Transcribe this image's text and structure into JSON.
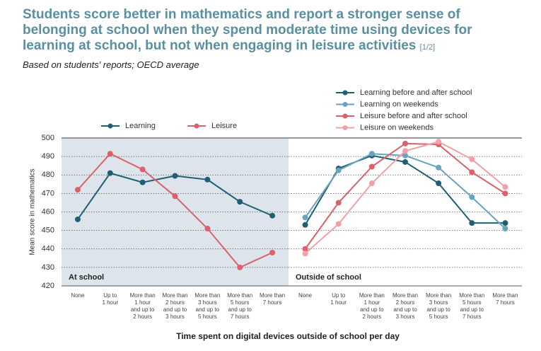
{
  "title": "Students score better in mathematics and report a stronger sense of belonging at school when they spend moderate time using devices for learning at school, but not when engaging in leisure activities",
  "title_note": "[1/2]",
  "subtitle": "Based on students' reports; OECD average",
  "x_label": "Time spent on digital devices outside of school per day",
  "chart_data": [
    {
      "type": "line",
      "panel_label": "At school",
      "y_label": "Mean score in mathematics",
      "background": "#dde4eb",
      "categories": [
        "None",
        "Up to\n1 hour",
        "More than\n1 hour\nand up to\n2 hours",
        "More than\n2 hours\nand up to\n3 hours",
        "More than\n3 hours\nand up to\n5 hours",
        "More than\n5 hours\nand up to\n7 hours",
        "More than\n7 hours"
      ],
      "series": [
        {
          "name": "Learning",
          "color": "#1f5f73",
          "values": [
            456,
            481,
            476,
            479.5,
            477.5,
            465.5,
            458
          ]
        },
        {
          "name": "Leisure",
          "color": "#d9626b",
          "values": [
            472,
            491.5,
            483,
            468.5,
            451,
            430,
            438
          ]
        }
      ],
      "ylim": [
        420,
        500
      ],
      "yticks": [
        420,
        430,
        440,
        450,
        460,
        470,
        480,
        490,
        500
      ],
      "grid": true
    },
    {
      "type": "line",
      "panel_label": "Outside of school",
      "categories": [
        "None",
        "Up to\n1 hour",
        "More than\n1 hour\nand up to\n2 hours",
        "More than\n2 hours\nand up to\n3 hours",
        "More than\n3 hours\nand up to\n5 hours",
        "More than\n5 hours\nand up to\n7 hours",
        "More than\n7 hours"
      ],
      "series": [
        {
          "name": "Learning before and after school",
          "color": "#1f5f73",
          "values": [
            453,
            483.5,
            490.5,
            487,
            475.5,
            454,
            454
          ]
        },
        {
          "name": "Learning on weekends",
          "color": "#6aa3bf",
          "values": [
            457,
            482.5,
            491.5,
            490.5,
            484,
            468,
            451
          ]
        },
        {
          "name": "Leisure before and after school",
          "color": "#d9626b",
          "values": [
            440,
            465,
            484.5,
            497,
            496.5,
            481.5,
            470
          ]
        },
        {
          "name": "Leisure on weekends",
          "color": "#f1a0a8",
          "values": [
            437.5,
            453.5,
            475.5,
            493,
            498,
            488.5,
            473.5
          ]
        }
      ],
      "ylim": [
        420,
        500
      ],
      "yticks": [
        420,
        430,
        440,
        450,
        460,
        470,
        480,
        490,
        500
      ],
      "grid": true
    }
  ]
}
